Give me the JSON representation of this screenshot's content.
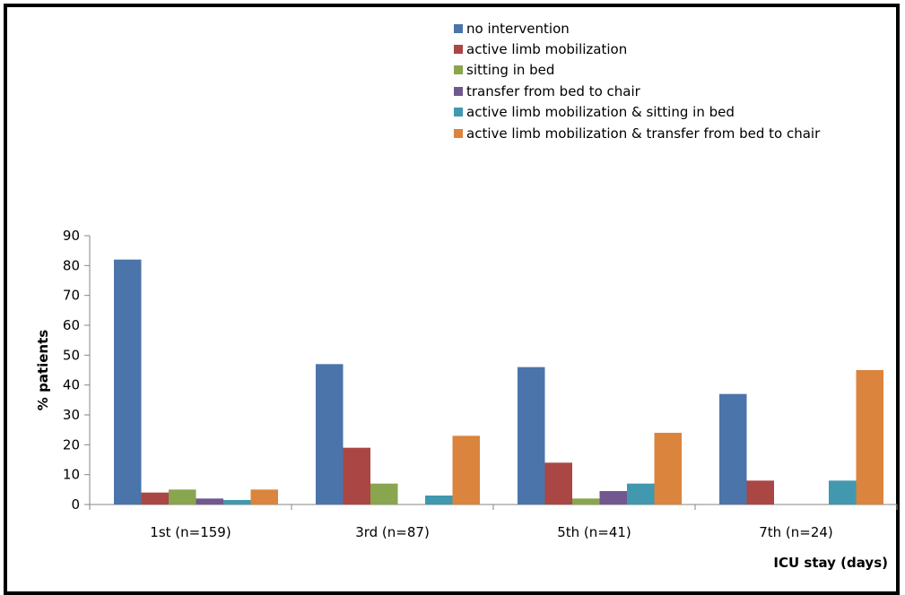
{
  "chart_data": {
    "type": "bar",
    "categories": [
      "1st (n=159)",
      "3rd (n=87)",
      "5th (n=41)",
      "7th (n=24)"
    ],
    "series": [
      {
        "name": "no intervention",
        "color": "#4A74AA",
        "values": [
          82,
          47,
          46,
          37
        ]
      },
      {
        "name": "active limb mobilization",
        "color": "#AA4643",
        "values": [
          4,
          19,
          14,
          8
        ]
      },
      {
        "name": "sitting in bed",
        "color": "#89A54E",
        "values": [
          5,
          7,
          2,
          0
        ]
      },
      {
        "name": "transfer from bed to chair",
        "color": "#71588F",
        "values": [
          2,
          0,
          4.5,
          0
        ]
      },
      {
        "name": "active limb mobilization  & sitting  in bed",
        "color": "#4198AF",
        "values": [
          1.5,
          3,
          7,
          8
        ]
      },
      {
        "name": "active limb mobilization  & transfer from bed to chair",
        "color": "#DB843D",
        "values": [
          5,
          23,
          24,
          45
        ]
      }
    ],
    "xlabel": "ICU stay (days)",
    "ylabel": "% patients",
    "ylim": [
      0,
      90
    ],
    "yticks": [
      0,
      10,
      20,
      30,
      40,
      50,
      60,
      70,
      80,
      90
    ],
    "grid": false,
    "legend_position": "top-right"
  }
}
